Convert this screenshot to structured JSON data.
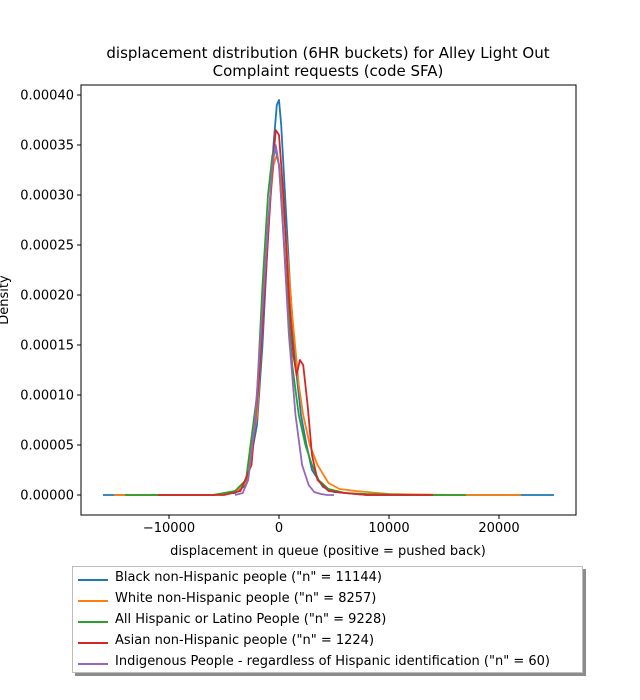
{
  "chart_data": {
    "type": "line",
    "title": "displacement distribution (6HR buckets) for Alley Light Out\nComplaint requests (code SFA)",
    "xlabel": "displacement in queue (positive = pushed back)",
    "ylabel": "Density",
    "xlim": [
      -18000,
      27000
    ],
    "ylim": [
      -2e-05,
      0.00041
    ],
    "x_ticks": [
      -10000,
      0,
      10000,
      20000
    ],
    "x_tick_labels": [
      "−10000",
      "0",
      "10000",
      "20000"
    ],
    "y_ticks": [
      0,
      5e-05,
      0.0001,
      0.00015,
      0.0002,
      0.00025,
      0.0003,
      0.00035,
      0.0004
    ],
    "y_tick_labels": [
      "0.00000",
      "0.00005",
      "0.00010",
      "0.00015",
      "0.00020",
      "0.00025",
      "0.00030",
      "0.00035",
      "0.00040"
    ],
    "grid": false,
    "legend_placement": "below",
    "series": [
      {
        "name": "Black non-Hispanic people (\"n\" = 11144)",
        "color": "#1f77b4",
        "x": [
          -16000,
          -10000,
          -6000,
          -4000,
          -3000,
          -2000,
          -1500,
          -1000,
          -500,
          -200,
          0,
          200,
          500,
          1000,
          1500,
          2000,
          2500,
          3000,
          4000,
          5000,
          6000,
          8000,
          12000,
          18000,
          25000
        ],
        "y": [
          0,
          0,
          0,
          2e-06,
          1e-05,
          7e-05,
          0.00015,
          0.00026,
          0.00035,
          0.00039,
          0.000395,
          0.00037,
          0.00031,
          0.00021,
          0.00013,
          8e-05,
          5e-05,
          2.5e-05,
          8e-06,
          3e-06,
          2e-06,
          0,
          0,
          0,
          0
        ]
      },
      {
        "name": "White non-Hispanic people (\"n\" = 8257)",
        "color": "#ff7f0e",
        "x": [
          -15000,
          -10000,
          -6000,
          -4000,
          -3000,
          -2000,
          -1500,
          -1000,
          -500,
          -200,
          0,
          300,
          700,
          1200,
          1800,
          2200,
          2800,
          3500,
          4500,
          5500,
          7000,
          10000,
          16000,
          22000
        ],
        "y": [
          0,
          0,
          0,
          3e-06,
          1.2e-05,
          8e-05,
          0.00017,
          0.00027,
          0.00033,
          0.00034,
          0.00033,
          0.0003,
          0.00025,
          0.00018,
          0.00011,
          8e-05,
          5e-05,
          3e-05,
          1.2e-05,
          6e-06,
          4e-06,
          1e-06,
          0,
          0
        ]
      },
      {
        "name": "All Hispanic or Latino People (\"n\" = 9228)",
        "color": "#2ca02c",
        "x": [
          -14000,
          -10000,
          -6000,
          -4000,
          -3000,
          -2000,
          -1500,
          -1000,
          -600,
          -300,
          0,
          300,
          700,
          1200,
          1800,
          2400,
          3000,
          3600,
          4500,
          6000,
          8000,
          12000,
          17000
        ],
        "y": [
          0,
          0,
          0,
          4e-06,
          1.5e-05,
          0.0001,
          0.00021,
          0.0003,
          0.00034,
          0.000345,
          0.00033,
          0.00028,
          0.00021,
          0.00013,
          8e-05,
          5e-05,
          3e-05,
          1.5e-05,
          6e-06,
          2e-06,
          1e-06,
          0,
          0
        ]
      },
      {
        "name": "Asian non-Hispanic people (\"n\" = 1224)",
        "color": "#d62728",
        "x": [
          -11000,
          -8000,
          -5000,
          -3500,
          -2500,
          -1800,
          -1200,
          -700,
          -300,
          0,
          400,
          900,
          1300,
          1600,
          1900,
          2200,
          2600,
          3000,
          3500,
          4500,
          6000,
          8000,
          10000,
          14000
        ],
        "y": [
          0,
          0,
          0,
          4e-06,
          3e-05,
          0.00012,
          0.00022,
          0.00031,
          0.000365,
          0.00036,
          0.0003,
          0.0002,
          0.00014,
          0.00012,
          0.000135,
          0.00013,
          9e-05,
          4e-05,
          1.5e-05,
          4e-06,
          2e-06,
          0,
          0,
          0
        ]
      },
      {
        "name": "Indigenous People - regardless of Hispanic identification (\"n\" = 60)",
        "color": "#9467bd",
        "x": [
          -4000,
          -3300,
          -2800,
          -2200,
          -1600,
          -1000,
          -600,
          -300,
          0,
          400,
          900,
          1500,
          2100,
          2700,
          3200,
          3800,
          4400,
          5000
        ],
        "y": [
          0,
          2e-06,
          1.5e-05,
          7e-05,
          0.00017,
          0.00027,
          0.00033,
          0.00035,
          0.00033,
          0.00026,
          0.00016,
          8e-05,
          3e-05,
          1e-05,
          3e-06,
          1e-06,
          0,
          0
        ]
      }
    ]
  }
}
